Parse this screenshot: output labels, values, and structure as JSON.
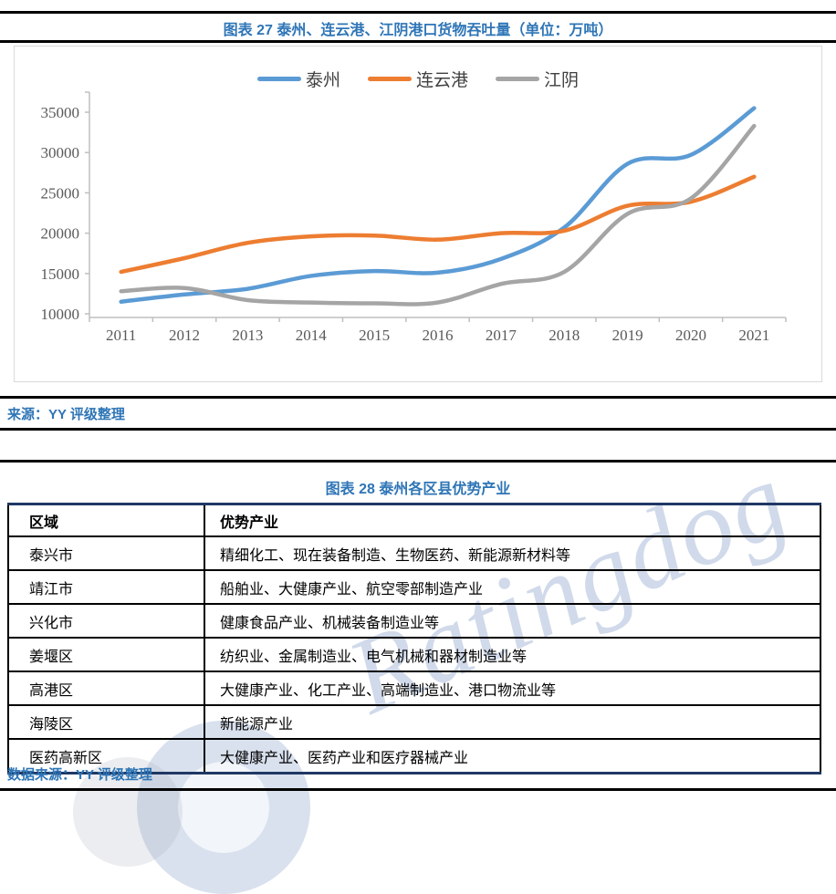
{
  "chart_section": {
    "title": "图表 27 泰州、连云港、江阴港口货物吞吐量（单位：万吨）",
    "source": "来源：YY 评级整理"
  },
  "chart_data": {
    "type": "line",
    "title": "图表 27 泰州、连云港、江阴港口货物吞吐量（单位：万吨）",
    "categories": [
      "2011",
      "2012",
      "2013",
      "2014",
      "2015",
      "2016",
      "2017",
      "2018",
      "2019",
      "2020",
      "2021"
    ],
    "series": [
      {
        "name": "泰州",
        "color": "#5B9BD5",
        "values": [
          11500,
          12400,
          13100,
          14700,
          15300,
          15100,
          16800,
          20700,
          28600,
          29700,
          35500
        ]
      },
      {
        "name": "连云港",
        "color": "#ED7D31",
        "values": [
          15200,
          16900,
          18800,
          19600,
          19700,
          19200,
          20000,
          20300,
          23400,
          23900,
          27000
        ]
      },
      {
        "name": "江阴",
        "color": "#A5A5A5",
        "values": [
          12800,
          13200,
          11700,
          11400,
          11300,
          11400,
          13700,
          15200,
          22400,
          24300,
          33300
        ]
      }
    ],
    "ylim": [
      10000,
      35000
    ],
    "ytick_step": 5000,
    "yticks": [
      10000,
      15000,
      20000,
      25000,
      30000,
      35000
    ],
    "legend_position": "top-center",
    "grid": false,
    "line_width": 4.5,
    "axis_color": "#BFBFBF",
    "label_color": "#595959"
  },
  "table_section": {
    "title": "图表 28 泰州各区县优势产业",
    "source": "数据来源：YY 评级整理",
    "columns": [
      "区域",
      "优势产业"
    ],
    "rows": [
      [
        "泰兴市",
        "精细化工、现在装备制造、生物医药、新能源新材料等"
      ],
      [
        "靖江市",
        "船舶业、大健康产业、航空零部制造产业"
      ],
      [
        "兴化市",
        "健康食品产业、机械装备制造业等"
      ],
      [
        "姜堰区",
        "纺织业、金属制造业、电气机械和器材制造业等"
      ],
      [
        "高港区",
        "大健康产业、化工产业、高端制造业、港口物流业等"
      ],
      [
        "海陵区",
        "新能源产业"
      ],
      [
        "医药高新区",
        "大健康产业、医药产业和医疗器械产业"
      ]
    ]
  },
  "watermark": {
    "text": "Ratingdog",
    "color": "#91A8CE"
  },
  "colors": {
    "heading_blue": "#2E75B6",
    "table_border_navy": "#1F3864",
    "rule_black": "#000000",
    "chart_border_gray": "#D9D9D9"
  }
}
